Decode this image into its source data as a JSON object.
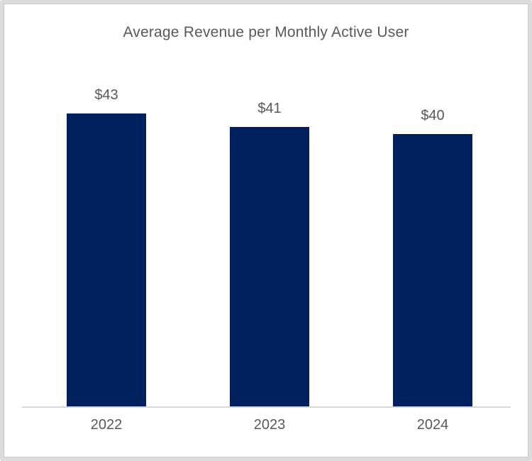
{
  "chart_data": {
    "type": "bar",
    "title": "Average Revenue per Monthly Active User",
    "categories": [
      "2022",
      "2023",
      "2024"
    ],
    "values": [
      43,
      41,
      40
    ],
    "value_labels": [
      "$43",
      "$41",
      "$40"
    ],
    "xlabel": "",
    "ylabel": "",
    "ylim": [
      0,
      43
    ],
    "grid": false,
    "legend": false,
    "bar_color": "#002060",
    "text_color": "#595959",
    "axis_line_color": "#d9d9d9",
    "frame_border_color": "#dcdcdc"
  }
}
